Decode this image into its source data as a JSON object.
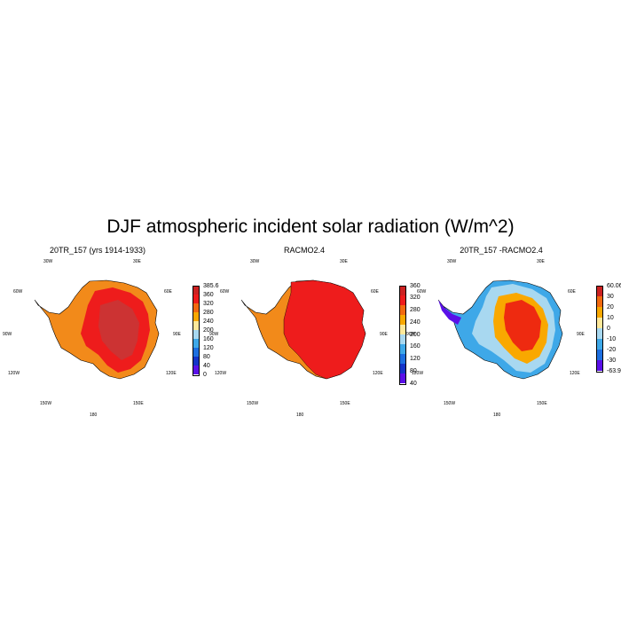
{
  "title": "DJF atmospheric incident solar radiation (W/m^2)",
  "panels": [
    {
      "title": "20TR_157 (yrs 1914-1933)",
      "lon_labels": {
        "l30w": "30W",
        "l30e": "30E",
        "l60w": "60W",
        "l60e": "60E",
        "l90w": "90W",
        "l90e": "90E",
        "l120w": "120W",
        "l120e": "120E",
        "l150w": "150W",
        "l150e": "150E",
        "l180": "180"
      },
      "colorbar": {
        "colors": [
          "#cc2222",
          "#ee1c1c",
          "#f26a10",
          "#f9a800",
          "#fde89a",
          "#a8d8f0",
          "#3ea8e8",
          "#1d6fe0",
          "#1434c8",
          "#5a10e8"
        ],
        "labels": [
          "385.6",
          "360",
          "320",
          "280",
          "240",
          "200",
          "160",
          "120",
          "80",
          "40",
          "0"
        ]
      }
    },
    {
      "title": "RACMO2.4",
      "lon_labels": {
        "l30w": "30W",
        "l30e": "30E",
        "l60w": "60W",
        "l60e": "60E",
        "l90w": "90W",
        "l90e": "90E",
        "l120w": "120W",
        "l120e": "120E",
        "l150w": "150W",
        "l150e": "150E",
        "l180": "180"
      },
      "colorbar": {
        "colors": [
          "#cc2222",
          "#ee1c1c",
          "#f26a10",
          "#f9a800",
          "#fde89a",
          "#a8d8f0",
          "#3ea8e8",
          "#1d6fe0",
          "#1434c8",
          "#5a10e8"
        ],
        "labels": [
          "360",
          "320",
          "280",
          "240",
          "200",
          "160",
          "120",
          "80",
          "40"
        ]
      }
    },
    {
      "title": "20TR_157 -RACMO2.4",
      "lon_labels": {
        "l30w": "30W",
        "l30e": "30E",
        "l60w": "60W",
        "l60e": "60E",
        "l90w": "90W",
        "l90e": "90E",
        "l120w": "120W",
        "l120e": "120E",
        "l150w": "150W",
        "l150e": "150E",
        "l180": "180"
      },
      "colorbar": {
        "colors": [
          "#cc2222",
          "#f26a10",
          "#f9a800",
          "#fde89a",
          "#a8d8f0",
          "#3ea8e8",
          "#1d6fe0",
          "#5a10e8"
        ],
        "labels": [
          "60.06",
          "30",
          "20",
          "10",
          "0",
          "-10",
          "-20",
          "-30",
          "-63.98"
        ]
      }
    }
  ],
  "colors": {
    "ice_shelf": "#f28a1a",
    "plateau": "#cc3333",
    "high": "#ee1c1c",
    "diff_pos": "#ee2a10",
    "diff_mid": "#f9a800",
    "diff_low": "#fde89a",
    "diff_neg": "#3ea8e8",
    "diff_neg_strong": "#5a10e8"
  }
}
